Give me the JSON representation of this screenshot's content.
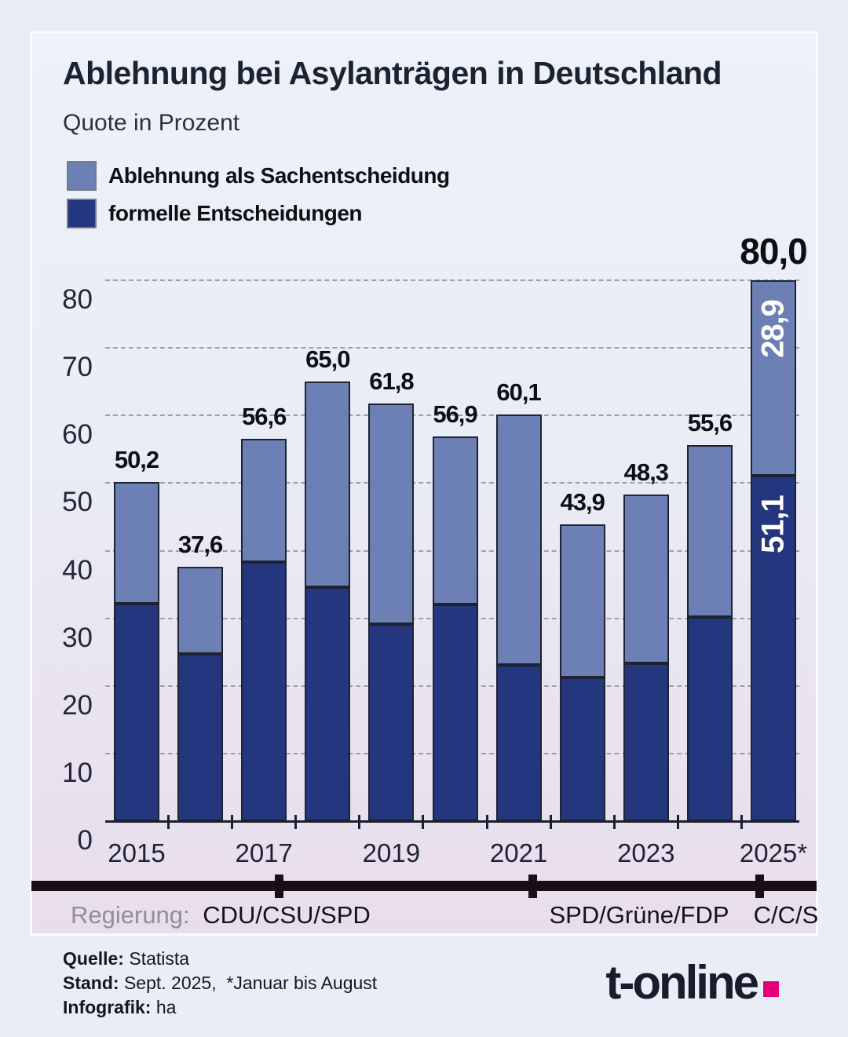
{
  "header": {
    "title": "Ablehnung bei Asylanträgen in Deutschland",
    "subtitle": "Quote in Prozent"
  },
  "legend": [
    {
      "label": "Ablehnung als Sachentscheidung",
      "color": "#6d80b6"
    },
    {
      "label": "formelle Entscheidungen",
      "color": "#24367d"
    }
  ],
  "chart_data": {
    "type": "bar",
    "stacked": true,
    "title": "Ablehnung bei Asylanträgen in Deutschland",
    "subtitle": "Quote in Prozent",
    "categories": [
      2015,
      2016,
      2017,
      2018,
      2019,
      2020,
      2021,
      2022,
      2023,
      2024,
      2025
    ],
    "series": [
      {
        "name": "formelle Entscheidungen",
        "color": "#24367d",
        "values": [
          32.2,
          24.7,
          38.3,
          34.6,
          29.1,
          32.1,
          23.1,
          21.3,
          23.3,
          30.2,
          51.1
        ]
      },
      {
        "name": "Ablehnung als Sachentscheidung",
        "color": "#6d80b6",
        "values": [
          18.0,
          12.9,
          18.3,
          30.4,
          32.7,
          24.8,
          37.0,
          22.6,
          25.0,
          25.4,
          28.9
        ]
      }
    ],
    "totals": [
      50.2,
      37.6,
      56.6,
      65.0,
      61.8,
      56.9,
      60.1,
      43.9,
      48.3,
      55.6,
      80.0
    ],
    "total_labels": [
      "50,2",
      "37,6",
      "56,6",
      "65,0",
      "61,8",
      "56,9",
      "60,1",
      "43,9",
      "48,3",
      "55,6",
      "80,0"
    ],
    "segment_labels_2025": {
      "sach": "28,9",
      "formell": "51,1"
    },
    "x_tick_labels": [
      "2015",
      "2017",
      "2019",
      "2021",
      "2023",
      "2025*"
    ],
    "x_tick_indices": [
      0,
      2,
      4,
      6,
      8,
      10
    ],
    "yticks": [
      0,
      10,
      20,
      30,
      40,
      50,
      60,
      70,
      80
    ],
    "ylim": [
      0,
      83
    ],
    "grid": "horizontal-dashed",
    "legend_position": "top-left"
  },
  "timeline": {
    "caption": "Regierung:",
    "periods": [
      {
        "label": "CDU/CSU/SPD"
      },
      {
        "label": "SPD/Grüne/FDP"
      },
      {
        "label": "C/C/S"
      }
    ]
  },
  "footer": {
    "source_label": "Quelle:",
    "source": " Statista",
    "stand_label": "Stand:",
    "stand": " Sept. 2025,  *Januar bis August",
    "credit_label": "Infografik:",
    "credit": " ha",
    "logo_text": "t-online",
    "logo_dot_color": "#e20074"
  }
}
